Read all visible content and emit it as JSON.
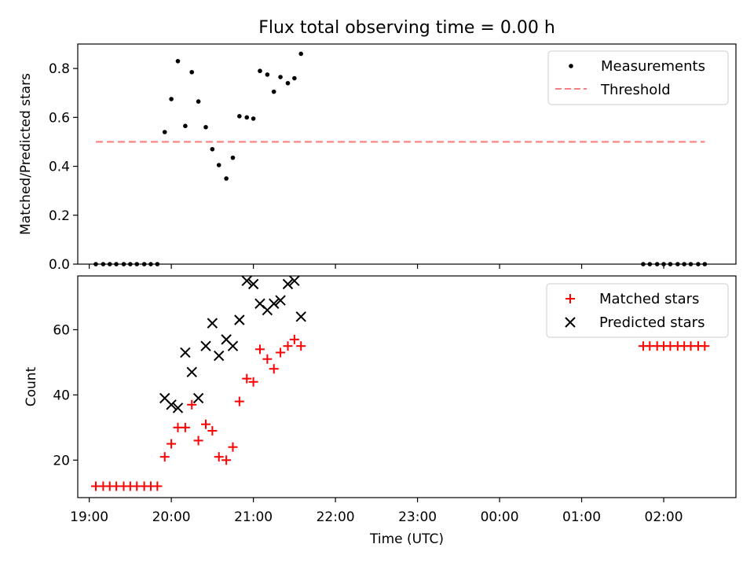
{
  "chart_data": [
    {
      "type": "scatter",
      "title": "Flux total observing time = 0.00 h",
      "xlabel": "",
      "ylabel": "Matched/Predicted stars",
      "xlim": [
        18.86,
        26.88
      ],
      "ylim": [
        0,
        0.9
      ],
      "yticks": [
        0.0,
        0.2,
        0.4,
        0.6,
        0.8
      ],
      "ytick_labels": [
        "0.0",
        "0.2",
        "0.4",
        "0.6",
        "0.8"
      ],
      "legend_position": "top-right",
      "series": [
        {
          "name": "Measurements",
          "kind": "scatter",
          "marker": "dot",
          "color": "#000000",
          "points": [
            [
              19.08,
              0
            ],
            [
              19.17,
              0
            ],
            [
              19.25,
              0
            ],
            [
              19.33,
              0
            ],
            [
              19.42,
              0
            ],
            [
              19.5,
              0
            ],
            [
              19.58,
              0
            ],
            [
              19.67,
              0
            ],
            [
              19.75,
              0
            ],
            [
              19.83,
              0
            ],
            [
              19.92,
              0.54
            ],
            [
              20.0,
              0.675
            ],
            [
              20.08,
              0.83
            ],
            [
              20.17,
              0.565
            ],
            [
              20.25,
              0.785
            ],
            [
              20.33,
              0.665
            ],
            [
              20.42,
              0.56
            ],
            [
              20.5,
              0.47
            ],
            [
              20.58,
              0.405
            ],
            [
              20.67,
              0.35
            ],
            [
              20.75,
              0.435
            ],
            [
              20.83,
              0.605
            ],
            [
              20.92,
              0.6
            ],
            [
              21.0,
              0.595
            ],
            [
              21.08,
              0.79
            ],
            [
              21.17,
              0.775
            ],
            [
              21.25,
              0.705
            ],
            [
              21.33,
              0.765
            ],
            [
              21.42,
              0.74
            ],
            [
              21.5,
              0.76
            ],
            [
              21.58,
              0.86
            ],
            [
              25.75,
              0
            ],
            [
              25.83,
              0
            ],
            [
              25.92,
              0
            ],
            [
              26.0,
              0
            ],
            [
              26.08,
              0
            ],
            [
              26.17,
              0
            ],
            [
              26.25,
              0
            ],
            [
              26.33,
              0
            ],
            [
              26.42,
              0
            ],
            [
              26.5,
              0
            ]
          ]
        },
        {
          "name": "Threshold",
          "kind": "line",
          "style": "dashed",
          "color": "#ff7f7f",
          "points": [
            [
              19.08,
              0.5
            ],
            [
              26.5,
              0.5
            ]
          ]
        }
      ]
    },
    {
      "type": "scatter",
      "title": "",
      "xlabel": "Time (UTC)",
      "ylabel": "Count",
      "xlim": [
        18.86,
        26.88
      ],
      "ylim": [
        8.5,
        76.5
      ],
      "yticks": [
        20,
        40,
        60
      ],
      "ytick_labels": [
        "20",
        "40",
        "60"
      ],
      "xticks": [
        19,
        20,
        21,
        22,
        23,
        24,
        25,
        26
      ],
      "xtick_labels": [
        "19:00",
        "20:00",
        "21:00",
        "22:00",
        "23:00",
        "00:00",
        "01:00",
        "02:00"
      ],
      "legend_position": "top-right",
      "series": [
        {
          "name": "Matched stars",
          "marker": "plus",
          "color": "#ff0000",
          "points": [
            [
              19.08,
              12
            ],
            [
              19.17,
              12
            ],
            [
              19.25,
              12
            ],
            [
              19.33,
              12
            ],
            [
              19.42,
              12
            ],
            [
              19.5,
              12
            ],
            [
              19.58,
              12
            ],
            [
              19.67,
              12
            ],
            [
              19.75,
              12
            ],
            [
              19.83,
              12
            ],
            [
              19.92,
              21
            ],
            [
              20.0,
              25
            ],
            [
              20.08,
              30
            ],
            [
              20.17,
              30
            ],
            [
              20.25,
              37
            ],
            [
              20.33,
              26
            ],
            [
              20.42,
              31
            ],
            [
              20.5,
              29
            ],
            [
              20.58,
              21
            ],
            [
              20.67,
              20
            ],
            [
              20.75,
              24
            ],
            [
              20.83,
              38
            ],
            [
              20.92,
              45
            ],
            [
              21.0,
              44
            ],
            [
              21.08,
              54
            ],
            [
              21.17,
              51
            ],
            [
              21.25,
              48
            ],
            [
              21.33,
              53
            ],
            [
              21.42,
              55
            ],
            [
              21.5,
              57
            ],
            [
              21.58,
              55
            ],
            [
              25.75,
              55
            ],
            [
              25.83,
              55
            ],
            [
              25.92,
              55
            ],
            [
              26.0,
              55
            ],
            [
              26.08,
              55
            ],
            [
              26.17,
              55
            ],
            [
              26.25,
              55
            ],
            [
              26.33,
              55
            ],
            [
              26.42,
              55
            ],
            [
              26.5,
              55
            ]
          ]
        },
        {
          "name": "Predicted stars",
          "marker": "x",
          "color": "#000000",
          "points": [
            [
              19.92,
              39
            ],
            [
              20.0,
              37
            ],
            [
              20.08,
              36
            ],
            [
              20.17,
              53
            ],
            [
              20.25,
              47
            ],
            [
              20.33,
              39
            ],
            [
              20.42,
              55
            ],
            [
              20.5,
              62
            ],
            [
              20.58,
              52
            ],
            [
              20.67,
              57
            ],
            [
              20.75,
              55
            ],
            [
              20.83,
              63
            ],
            [
              20.92,
              75
            ],
            [
              21.0,
              74
            ],
            [
              21.08,
              68
            ],
            [
              21.17,
              66
            ],
            [
              21.25,
              68
            ],
            [
              21.33,
              69
            ],
            [
              21.42,
              74
            ],
            [
              21.5,
              75
            ],
            [
              21.58,
              64
            ]
          ]
        }
      ]
    }
  ]
}
